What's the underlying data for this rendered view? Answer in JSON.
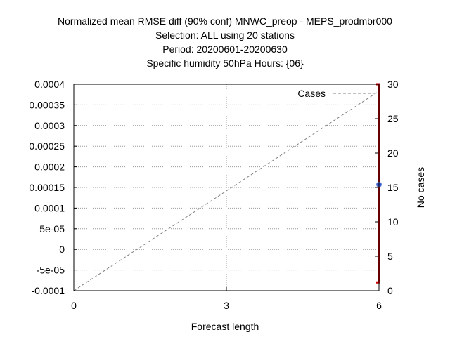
{
  "chart_data": {
    "type": "line",
    "title_lines": [
      "Normalized mean RMSE diff (90% conf) MNWC_preop - MEPS_prodmbr000",
      "Selection: ALL using    20 stations",
      "Period: 20200601-20200630",
      "Specific humidity 50hPa   Hours: {06}"
    ],
    "xlabel": "Forecast length",
    "ylabel": "",
    "y2label": "No cases",
    "xlim": [
      0,
      6
    ],
    "ylim": [
      -0.0001,
      0.0004
    ],
    "y2lim": [
      0,
      30
    ],
    "x_ticks": [
      "0",
      "3",
      "6"
    ],
    "y_ticks": [
      "-0.0001",
      "-5e-05",
      "0",
      "5e-05",
      "0.0001",
      "0.00015",
      "0.0002",
      "0.00025",
      "0.0003",
      "0.00035",
      "0.0004"
    ],
    "y2_ticks": [
      "0",
      "5",
      "10",
      "15",
      "20",
      "25",
      "30"
    ],
    "grid": true,
    "legend_position": "top-right",
    "series": [
      {
        "name": "Cases",
        "axis": "y2",
        "style": "dashed",
        "color": "#808080",
        "x": [
          0,
          6
        ],
        "y": [
          0,
          29
        ]
      },
      {
        "name": "",
        "axis": "y",
        "style": "errorbar",
        "color": "#cc0000",
        "marker_color": "#3355cc",
        "x": [
          6
        ],
        "y": [
          0.000157
        ],
        "y_low": [
          -8e-05
        ],
        "y_high": [
          0.0004
        ]
      }
    ]
  }
}
